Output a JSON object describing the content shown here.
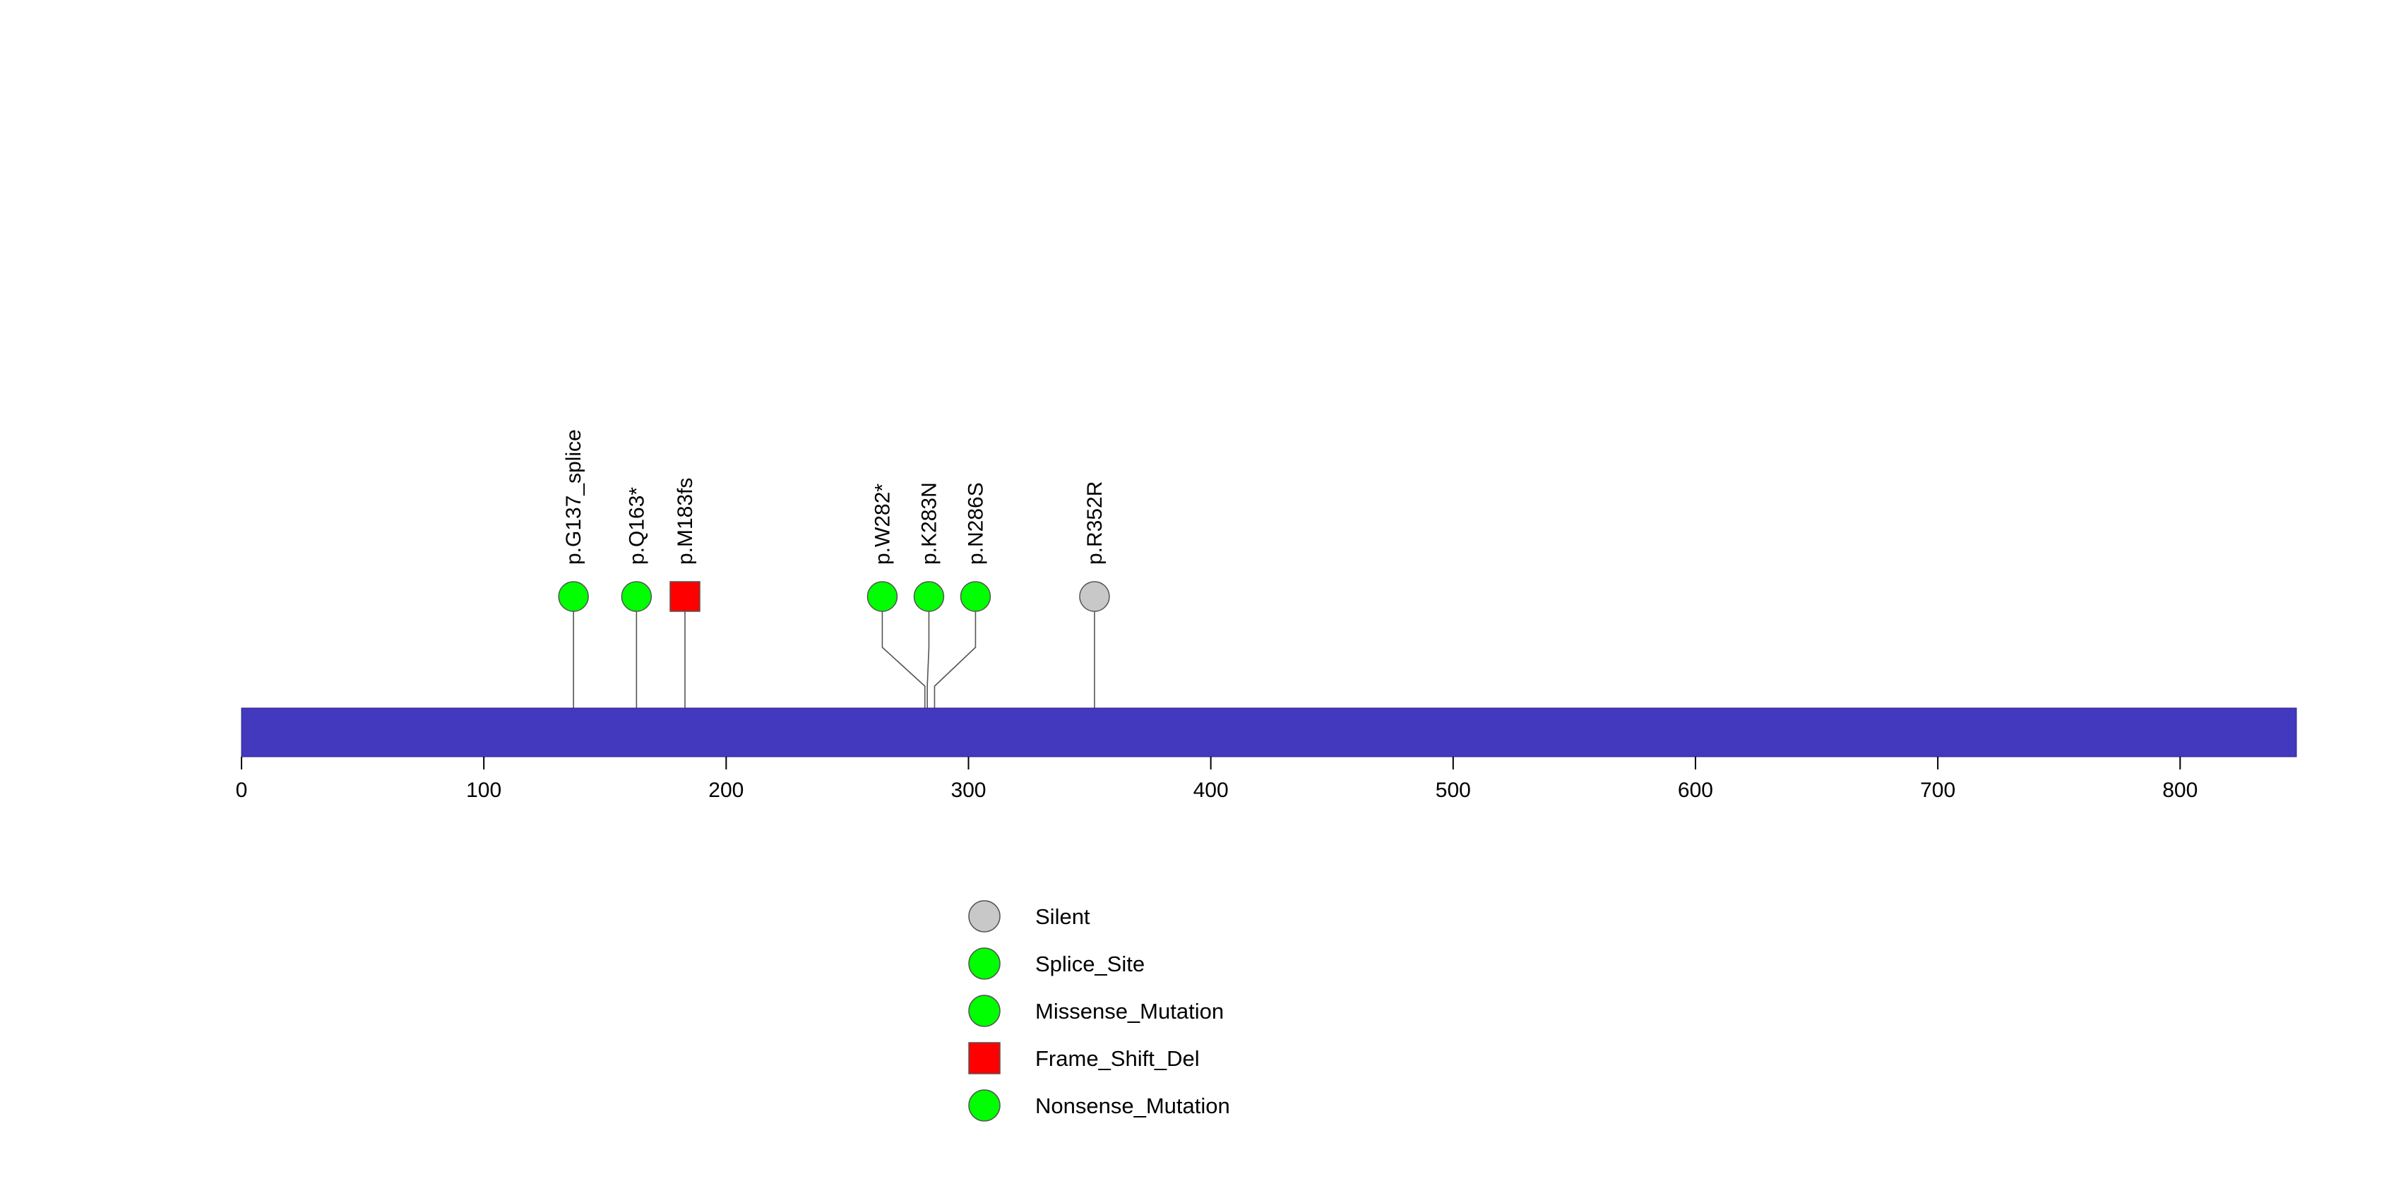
{
  "chart_data": {
    "type": "lollipop",
    "title": "",
    "xlabel": "",
    "ylabel": "",
    "protein_length": 848,
    "xlim": [
      0,
      848
    ],
    "xticks": [
      0,
      100,
      200,
      300,
      400,
      500,
      600,
      700,
      800
    ],
    "grid": false,
    "domain_bar_color": "#4239BE",
    "mutations": [
      {
        "label": "p.G137_splice",
        "position": 137,
        "type": "Splice_Site"
      },
      {
        "label": "p.Q163*",
        "position": 163,
        "type": "Nonsense_Mutation"
      },
      {
        "label": "p.M183fs",
        "position": 183,
        "type": "Frame_Shift_Del"
      },
      {
        "label": "p.W282*",
        "position": 282,
        "type": "Nonsense_Mutation"
      },
      {
        "label": "p.K283N",
        "position": 283,
        "type": "Missense_Mutation"
      },
      {
        "label": "p.N286S",
        "position": 286,
        "type": "Missense_Mutation"
      },
      {
        "label": "p.R352R",
        "position": 352,
        "type": "Silent"
      }
    ],
    "legend": {
      "placement": "bottom-center",
      "entries": [
        {
          "label": "Silent",
          "shape": "circle",
          "color": "#C8C8C8"
        },
        {
          "label": "Splice_Site",
          "shape": "circle",
          "color": "#00FF00"
        },
        {
          "label": "Missense_Mutation",
          "shape": "circle",
          "color": "#00FF00"
        },
        {
          "label": "Frame_Shift_Del",
          "shape": "square",
          "color": "#FF0000"
        },
        {
          "label": "Nonsense_Mutation",
          "shape": "circle",
          "color": "#00FF00"
        }
      ]
    },
    "type_colors": {
      "Silent": "#C8C8C8",
      "Splice_Site": "#00FF00",
      "Missense_Mutation": "#00FF00",
      "Frame_Shift_Del": "#FF0000",
      "Nonsense_Mutation": "#00FF00"
    }
  }
}
